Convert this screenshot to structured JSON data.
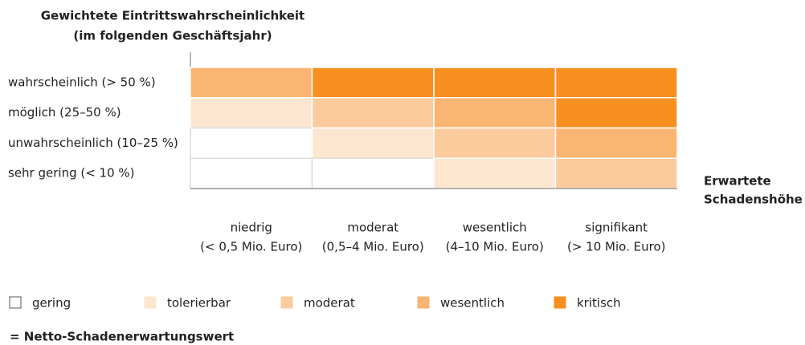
{
  "header": {
    "title_lines": [
      "Gewichtete Eintrittswahrscheinlichkeit",
      "(im folgenden Geschäftsjahr)"
    ]
  },
  "rows": [
    "wahrscheinlich (> 50 %)",
    "möglich (25–50 %)",
    "unwahrscheinlich (10–25 %)",
    "sehr gering (< 10 %)"
  ],
  "x_axis_label_lines": [
    "Erwartete",
    "Schadenshöhe"
  ],
  "columns": [
    [
      "niedrig",
      "(< 0,5 Mio. Euro)"
    ],
    [
      "moderat",
      "(0,5–4 Mio. Euro)"
    ],
    [
      "wesentlich",
      "(4–10 Mio. Euro)"
    ],
    [
      "signifikant",
      "(> 10 Mio. Euro)"
    ]
  ],
  "legend": [
    {
      "name": "gering",
      "color": "#ffffff"
    },
    {
      "name": "tolerierbar",
      "color": "#fde6cf"
    },
    {
      "name": "moderat",
      "color": "#fbcb9d"
    },
    {
      "name": "wesentlich",
      "color": "#f9b571"
    },
    {
      "name": "kritisch",
      "color": "#f7901e"
    }
  ],
  "grid": [
    [
      3,
      4,
      4,
      4
    ],
    [
      1,
      2,
      3,
      4
    ],
    [
      0,
      1,
      2,
      3
    ],
    [
      0,
      0,
      1,
      2
    ]
  ],
  "footer": "= Netto-Schadenerwartungswert"
}
